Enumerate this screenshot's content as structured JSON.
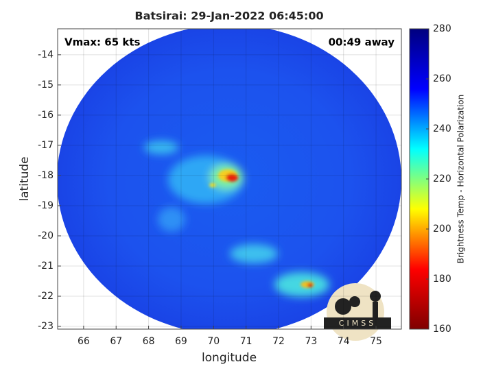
{
  "chart_data": {
    "type": "image",
    "title": "Batsirai: 29-Jan-2022 06:45:00",
    "annotations": [
      "Vmax: 65 kts",
      "00:49 away"
    ],
    "xlabel": "longitude",
    "ylabel": "latitude",
    "xlim": [
      65.2,
      75.78
    ],
    "ylim": [
      -23.09,
      -13.14
    ],
    "xticks": [
      66,
      67,
      68,
      69,
      70,
      71,
      72,
      73,
      74,
      75
    ],
    "yticks": [
      -14,
      -15,
      -16,
      -17,
      -18,
      -19,
      -20,
      -21,
      -22,
      -23
    ],
    "grid": true,
    "colorbar": {
      "label": "Brightness Temp - Horizontal Polarization",
      "lim": [
        160,
        280
      ],
      "ticks": [
        160,
        180,
        200,
        220,
        240,
        260,
        280
      ],
      "colormap": "jet"
    },
    "logo": "CIMSS"
  }
}
